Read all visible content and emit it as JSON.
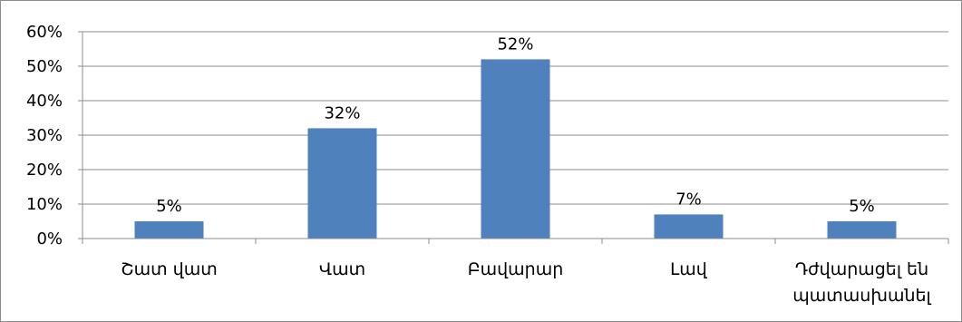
{
  "chart_data": {
    "type": "bar",
    "title": "",
    "xlabel": "",
    "ylabel": "",
    "categories": [
      [
        "Շատ վատ"
      ],
      [
        "Վատ"
      ],
      [
        "Բավարար"
      ],
      [
        "Լավ"
      ],
      [
        "Դժվարացել են",
        "պատասխանել"
      ]
    ],
    "values": [
      5,
      32,
      52,
      7,
      5
    ],
    "data_labels": [
      "5%",
      "32%",
      "52%",
      "7%",
      "5%"
    ],
    "ylim": [
      0,
      60
    ],
    "y_ticks": [
      0,
      10,
      20,
      30,
      40,
      50,
      60
    ],
    "y_tick_labels": [
      "0%",
      "10%",
      "20%",
      "30%",
      "40%",
      "50%",
      "60%"
    ],
    "grid": true,
    "legend": "none",
    "colors": {
      "bar": "#4f81bd",
      "grid": "#8c8c8c",
      "axis": "#8c8c8c",
      "text": "#000000",
      "border": "#8c8c8c"
    }
  }
}
